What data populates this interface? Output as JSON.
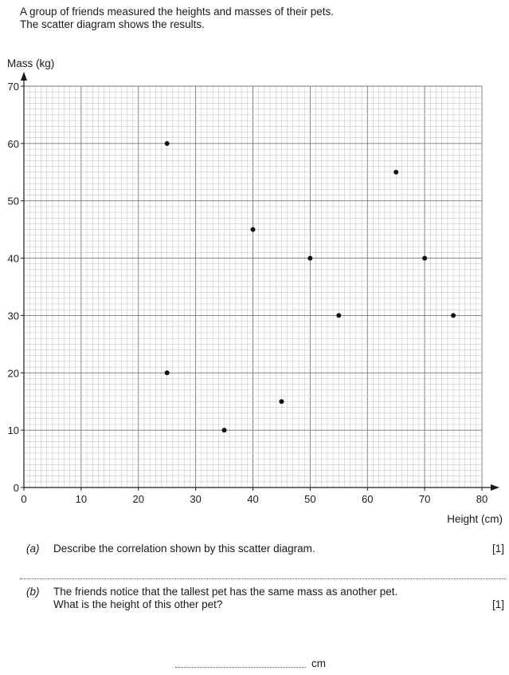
{
  "intro": {
    "line1": "A group of friends measured the heights and masses of their pets.",
    "line2": "The scatter diagram shows the results."
  },
  "chart_data": {
    "type": "scatter",
    "title": "",
    "xlabel": "Height (cm)",
    "ylabel": "Mass (kg)",
    "xlim": [
      0,
      80
    ],
    "ylim": [
      0,
      70
    ],
    "xticks": [
      0,
      10,
      20,
      30,
      40,
      50,
      60,
      70,
      80
    ],
    "yticks": [
      0,
      10,
      20,
      30,
      40,
      50,
      60,
      70
    ],
    "grid": true,
    "points": [
      {
        "x": 25,
        "y": 60
      },
      {
        "x": 25,
        "y": 20
      },
      {
        "x": 35,
        "y": 10
      },
      {
        "x": 40,
        "y": 45
      },
      {
        "x": 45,
        "y": 15
      },
      {
        "x": 50,
        "y": 40
      },
      {
        "x": 55,
        "y": 30
      },
      {
        "x": 65,
        "y": 55
      },
      {
        "x": 70,
        "y": 40
      },
      {
        "x": 75,
        "y": 30
      }
    ]
  },
  "questions": {
    "a": {
      "label": "(a)",
      "text": "Describe the correlation shown by this scatter diagram.",
      "marks": "[1]"
    },
    "b": {
      "label": "(b)",
      "line1": "The friends notice that the tallest pet has the same mass as another pet.",
      "line2": "What is the height of this other pet?",
      "marks": "[1]",
      "unit": "cm"
    }
  }
}
